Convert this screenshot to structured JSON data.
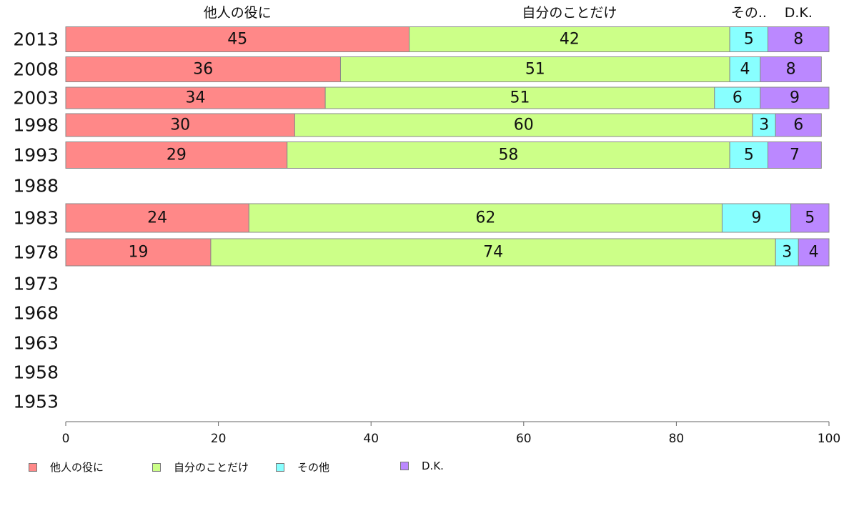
{
  "chart_data": {
    "type": "bar",
    "orientation": "horizontal",
    "stacked": true,
    "categories": [
      "2013",
      "2008",
      "2003",
      "1998",
      "1993",
      "1988",
      "1983",
      "1978",
      "1973",
      "1968",
      "1963",
      "1958",
      "1953"
    ],
    "series": [
      {
        "name": "他人の役に",
        "color": "#ff8888",
        "values": [
          45,
          36,
          34,
          30,
          29,
          null,
          24,
          19,
          null,
          null,
          null,
          null,
          null
        ]
      },
      {
        "name": "自分のことだけ",
        "color": "#ccff88",
        "values": [
          42,
          51,
          51,
          60,
          58,
          null,
          62,
          74,
          null,
          null,
          null,
          null,
          null
        ]
      },
      {
        "name": "その他",
        "color": "#88ffff",
        "values": [
          5,
          4,
          6,
          3,
          5,
          null,
          9,
          3,
          null,
          null,
          null,
          null,
          null
        ]
      },
      {
        "name": "D.K.",
        "color": "#bb88ff",
        "values": [
          8,
          8,
          9,
          6,
          7,
          null,
          5,
          4,
          null,
          null,
          null,
          null,
          null
        ]
      }
    ],
    "top_labels": [
      "他人の役に",
      "自分のことだけ",
      "その..",
      "D.K."
    ],
    "xlim": [
      0,
      100
    ],
    "xticks": [
      "0",
      "20",
      "40",
      "60",
      "80",
      "100"
    ],
    "grid": false,
    "legend_position": "bottom-left"
  }
}
